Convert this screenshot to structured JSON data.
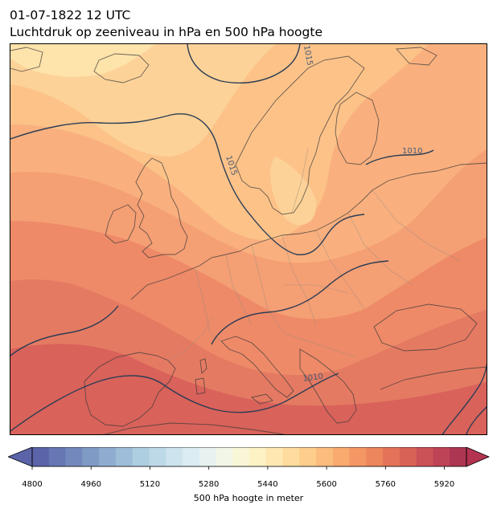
{
  "title": {
    "line1": "01-07-1822 12 UTC",
    "line2": "Luchtdruk op zeeniveau in hPa en 500 hPa hoogte"
  },
  "map": {
    "region": "Europe",
    "contour_labels": [
      {
        "text": "1015"
      },
      {
        "text": "1015"
      },
      {
        "text": "1010"
      },
      {
        "text": "1010"
      }
    ],
    "isobar_color": "#2b3d55",
    "coastline_color": "#3a3a3a",
    "border_color": "#9a8c80"
  },
  "colorbar": {
    "label": "500 hPa hoogte in meter",
    "min": 4800,
    "max": 6000,
    "step": 40,
    "ticks": [
      "4800",
      "4960",
      "5120",
      "5280",
      "5440",
      "5600",
      "5760",
      "5920"
    ],
    "extend": "both",
    "colormap": "RdYlBu_r"
  }
}
